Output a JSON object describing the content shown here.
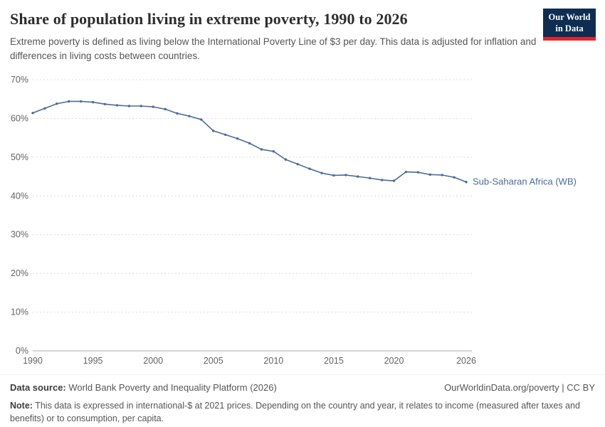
{
  "header": {
    "title": "Share of population living in extreme poverty, 1990 to 2026",
    "subtitle": "Extreme poverty is defined as living below the International Poverty Line of $3 per day. This data is adjusted for inflation and differences in living costs between countries.",
    "logo": {
      "line1": "Our World",
      "line2": "in Data"
    }
  },
  "colors": {
    "series_blue": "#4c6a9c",
    "logo_navy": "#0d2d53",
    "logo_red": "#e0262c",
    "gridline": "#dcdcdc",
    "axis_text": "#636363"
  },
  "chart_data": {
    "type": "line",
    "title": "Share of population living in extreme poverty, 1990 to 2026",
    "xlabel": "",
    "ylabel": "",
    "xlim": [
      1990,
      2026
    ],
    "ylim": [
      0,
      70
    ],
    "grid": "horizontal-dashed",
    "legend_position": "end-of-line-label",
    "x_ticks": [
      1990,
      1995,
      2000,
      2005,
      2010,
      2015,
      2020,
      2026
    ],
    "y_ticks": [
      "0%",
      "10%",
      "20%",
      "30%",
      "40%",
      "50%",
      "60%",
      "70%"
    ],
    "series": [
      {
        "name": "Sub-Saharan Africa (WB)",
        "color": "#4c6a9c",
        "x": [
          1990,
          1991,
          1992,
          1993,
          1994,
          1995,
          1996,
          1997,
          1998,
          1999,
          2000,
          2001,
          2002,
          2003,
          2004,
          2005,
          2006,
          2007,
          2008,
          2009,
          2010,
          2011,
          2012,
          2013,
          2014,
          2015,
          2016,
          2017,
          2018,
          2019,
          2020,
          2021,
          2022,
          2023,
          2024,
          2025,
          2026
        ],
        "values": [
          61.4,
          62.6,
          63.8,
          64.4,
          64.4,
          64.2,
          63.7,
          63.4,
          63.2,
          63.2,
          63.0,
          62.4,
          61.3,
          60.6,
          59.7,
          56.8,
          55.8,
          54.8,
          53.6,
          52.0,
          51.5,
          49.4,
          48.2,
          47.0,
          45.9,
          45.3,
          45.4,
          45.0,
          44.6,
          44.1,
          43.9,
          46.2,
          46.1,
          45.5,
          45.4,
          44.8,
          43.6
        ]
      }
    ]
  },
  "footer": {
    "datasource_label": "Data source:",
    "datasource_text": " World Bank Poverty and Inequality Platform (2026)",
    "rights": "OurWorldinData.org/poverty | CC BY",
    "note_label": "Note:",
    "note_text": " This data is expressed in international-$ at 2021 prices. Depending on the country and year, it relates to income (measured after taxes and benefits) or to consumption, per capita."
  }
}
